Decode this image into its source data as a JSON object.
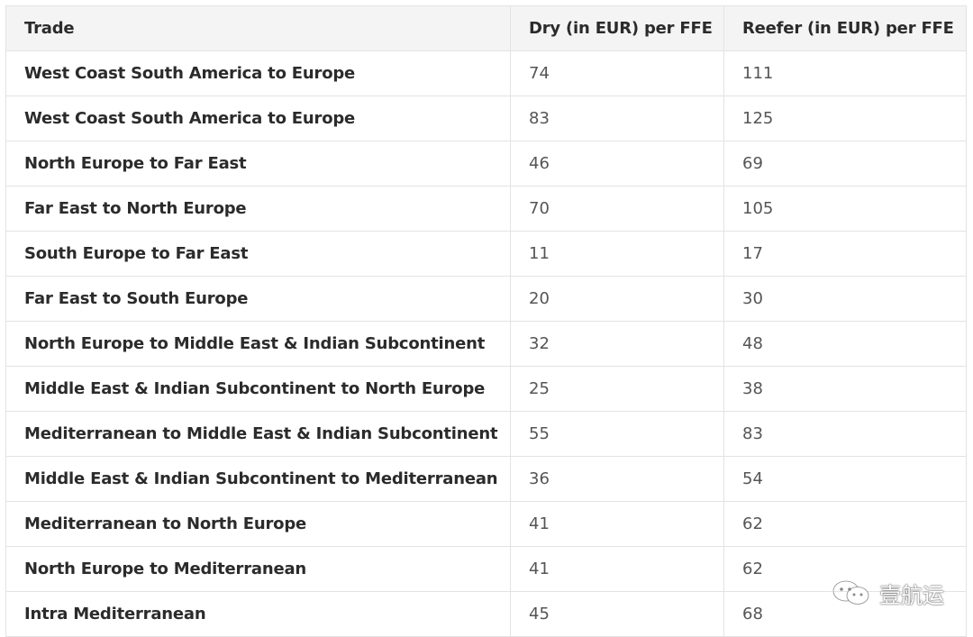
{
  "table": {
    "headers": [
      "Trade",
      "Dry (in EUR) per FFE",
      "Reefer (in EUR) per FFE"
    ],
    "rows": [
      {
        "trade": "West Coast South America to Europe",
        "dry": "74",
        "reefer": "111"
      },
      {
        "trade": "West Coast South America to Europe",
        "dry": "83",
        "reefer": "125"
      },
      {
        "trade": "North Europe to Far East",
        "dry": "46",
        "reefer": "69"
      },
      {
        "trade": "Far East to North Europe",
        "dry": "70",
        "reefer": "105"
      },
      {
        "trade": "South Europe to Far East",
        "dry": "11",
        "reefer": "17"
      },
      {
        "trade": "Far East to South Europe",
        "dry": "20",
        "reefer": "30"
      },
      {
        "trade": "North Europe to Middle East & Indian Subcontinent",
        "dry": "32",
        "reefer": "48"
      },
      {
        "trade": "Middle East & Indian Subcontinent to North Europe",
        "dry": "25",
        "reefer": "38"
      },
      {
        "trade": "Mediterranean to Middle East & Indian Subcontinent",
        "dry": "55",
        "reefer": "83"
      },
      {
        "trade": "Middle East & Indian Subcontinent to Mediterranean",
        "dry": "36",
        "reefer": "54"
      },
      {
        "trade": "Mediterranean to North Europe",
        "dry": "41",
        "reefer": "62"
      },
      {
        "trade": "North Europe to Mediterranean",
        "dry": "41",
        "reefer": "62"
      },
      {
        "trade": "Intra Mediterranean",
        "dry": "45",
        "reefer": "68"
      }
    ]
  },
  "watermark": {
    "icon": "wechat-icon",
    "text": "壹航运"
  }
}
